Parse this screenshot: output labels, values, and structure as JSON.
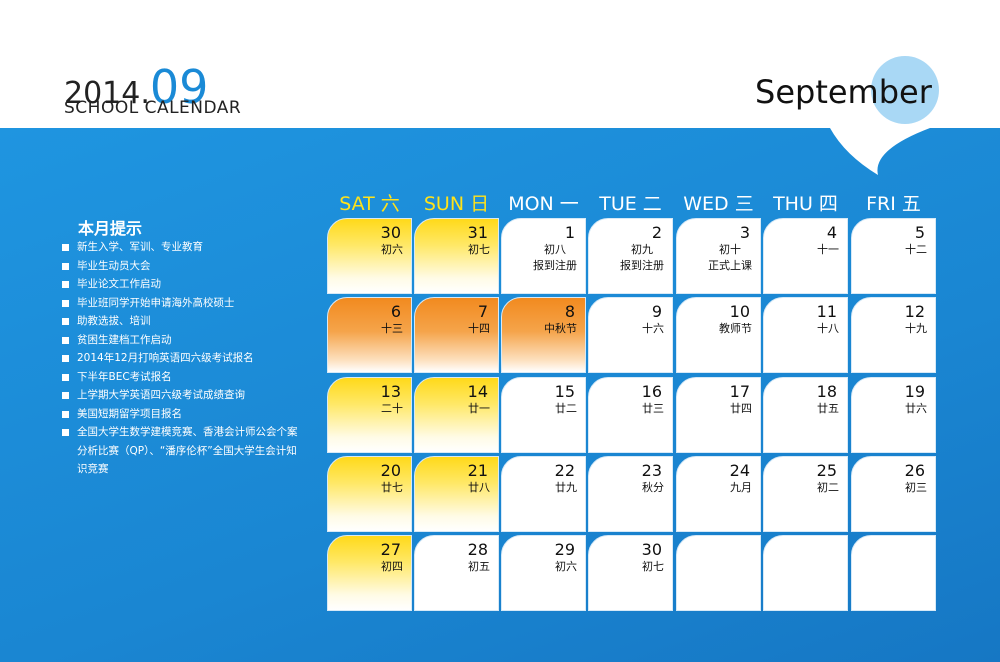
{
  "header": {
    "year": "2014.",
    "month": "09",
    "subtitle": "SCHOOL CALENDAR",
    "month_name": "September"
  },
  "notes": {
    "title": "本月提示",
    "items": [
      "新生入学、军训、专业教育",
      "毕业生动员大会",
      "毕业论文工作启动",
      "毕业班同学开始申请海外高校硕士",
      "助教选拔、培训",
      "贫困生建档工作启动",
      "2014年12月打响英语四六级考试报名",
      "下半年BEC考试报名",
      "上学期大学英语四六级考试成绩查询",
      "美国短期留学项目报名",
      "全国大学生数学建模竞赛、香港会计师公会个案分析比赛（QP）、“潘序伦杯”全国大学生会计知识竞赛"
    ]
  },
  "weekdays": [
    "SAT 六",
    "SUN 日",
    "MON 一",
    "TUE 二",
    "WED 三",
    "THU 四",
    "FRI 五"
  ],
  "calendar": {
    "rows": [
      [
        {
          "day": "30",
          "lunar": "初六",
          "fill": "yellow"
        },
        {
          "day": "31",
          "lunar": "初七",
          "fill": "yellow"
        },
        {
          "day": "1",
          "lunar": "初八",
          "note": "报到注册"
        },
        {
          "day": "2",
          "lunar": "初九",
          "note": "报到注册"
        },
        {
          "day": "3",
          "lunar": "初十",
          "note": "正式上课"
        },
        {
          "day": "4",
          "lunar": "十一"
        },
        {
          "day": "5",
          "lunar": "十二"
        }
      ],
      [
        {
          "day": "6",
          "lunar": "十三",
          "fill": "orange"
        },
        {
          "day": "7",
          "lunar": "十四",
          "fill": "orange"
        },
        {
          "day": "8",
          "lunar": "中秋节",
          "fill": "orange"
        },
        {
          "day": "9",
          "lunar": "十六"
        },
        {
          "day": "10",
          "lunar": "教师节"
        },
        {
          "day": "11",
          "lunar": "十八"
        },
        {
          "day": "12",
          "lunar": "十九"
        }
      ],
      [
        {
          "day": "13",
          "lunar": "二十",
          "fill": "yellow"
        },
        {
          "day": "14",
          "lunar": "廿一",
          "fill": "yellow"
        },
        {
          "day": "15",
          "lunar": "廿二"
        },
        {
          "day": "16",
          "lunar": "廿三"
        },
        {
          "day": "17",
          "lunar": "廿四"
        },
        {
          "day": "18",
          "lunar": "廿五"
        },
        {
          "day": "19",
          "lunar": "廿六"
        }
      ],
      [
        {
          "day": "20",
          "lunar": "廿七",
          "fill": "yellow"
        },
        {
          "day": "21",
          "lunar": "廿八",
          "fill": "yellow"
        },
        {
          "day": "22",
          "lunar": "廿九"
        },
        {
          "day": "23",
          "lunar": "秋分"
        },
        {
          "day": "24",
          "lunar": "九月"
        },
        {
          "day": "25",
          "lunar": "初二"
        },
        {
          "day": "26",
          "lunar": "初三"
        }
      ],
      [
        {
          "day": "27",
          "lunar": "初四",
          "fill": "yellow"
        },
        {
          "day": "28",
          "lunar": "初五"
        },
        {
          "day": "29",
          "lunar": "初六"
        },
        {
          "day": "30",
          "lunar": "初七"
        },
        null,
        null,
        null
      ]
    ]
  }
}
